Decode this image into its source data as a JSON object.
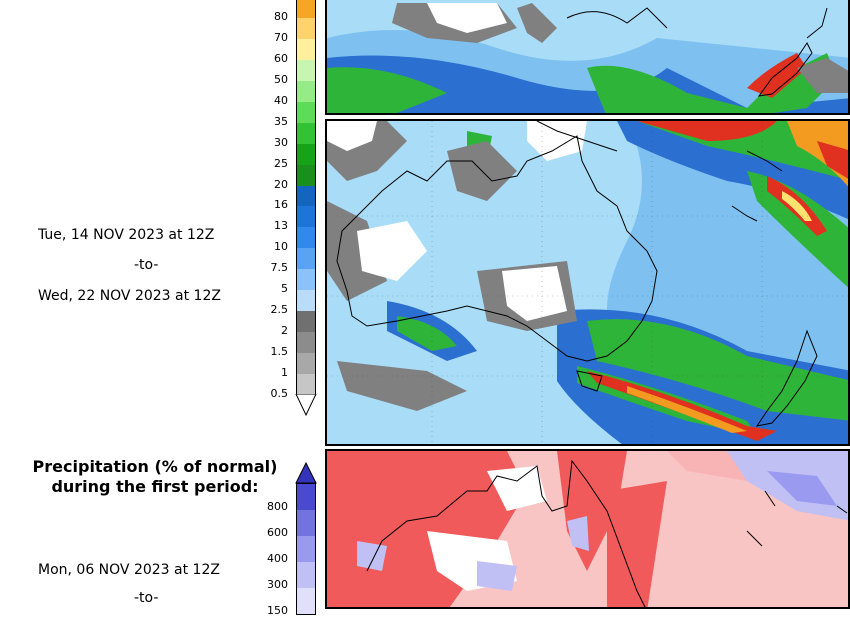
{
  "colorbar_precip": {
    "labels": [
      "80",
      "70",
      "60",
      "50",
      "40",
      "35",
      "30",
      "25",
      "20",
      "16",
      "13",
      "10",
      "7.5",
      "5",
      "2.5",
      "2",
      "1.5",
      "1",
      "0.5"
    ],
    "colors": [
      "#f5a623",
      "#ffd36b",
      "#fff0a0",
      "#c8f5b0",
      "#97ea88",
      "#5fdb5a",
      "#32c236",
      "#14a319",
      "#1a8f1e",
      "#1565c0",
      "#1e74d8",
      "#3388ee",
      "#5aa2f2",
      "#8cc2f7",
      "#b9dcf9",
      "#707070",
      "#8c8c8c",
      "#a8a8a8",
      "#c6c6c6"
    ]
  },
  "period_text": {
    "start": "Tue, 14 NOV 2023 at 12Z",
    "sep": "-to-",
    "end": "Wed, 22 NOV 2023 at 12Z"
  },
  "section2": {
    "title_line1": "Precipitation (% of normal)",
    "title_line2": "during the first period:",
    "date_start": "Mon, 06 NOV 2023 at 12Z",
    "sep_partial": "-to-"
  },
  "colorbar_pct": {
    "labels": [
      "800",
      "600",
      "400",
      "300",
      "150"
    ],
    "colors": [
      "#4a4ad0",
      "#7373e0",
      "#9a9aec",
      "#c0c0f4",
      "#e0e0fa"
    ]
  },
  "map_colors": {
    "ocean_light": "#a9dcf7",
    "ocean_mid": "#7ec1f0",
    "blue": "#2b6fd1",
    "green": "#2fb43a",
    "red": "#e03020",
    "orange": "#f29b20",
    "yellow": "#ffe36e",
    "gray": "#808080",
    "land_white": "#ffffff",
    "pct_red": "#f05a5a",
    "pct_pink": "#f8b4b4",
    "pct_blue": "#9a9af0"
  }
}
